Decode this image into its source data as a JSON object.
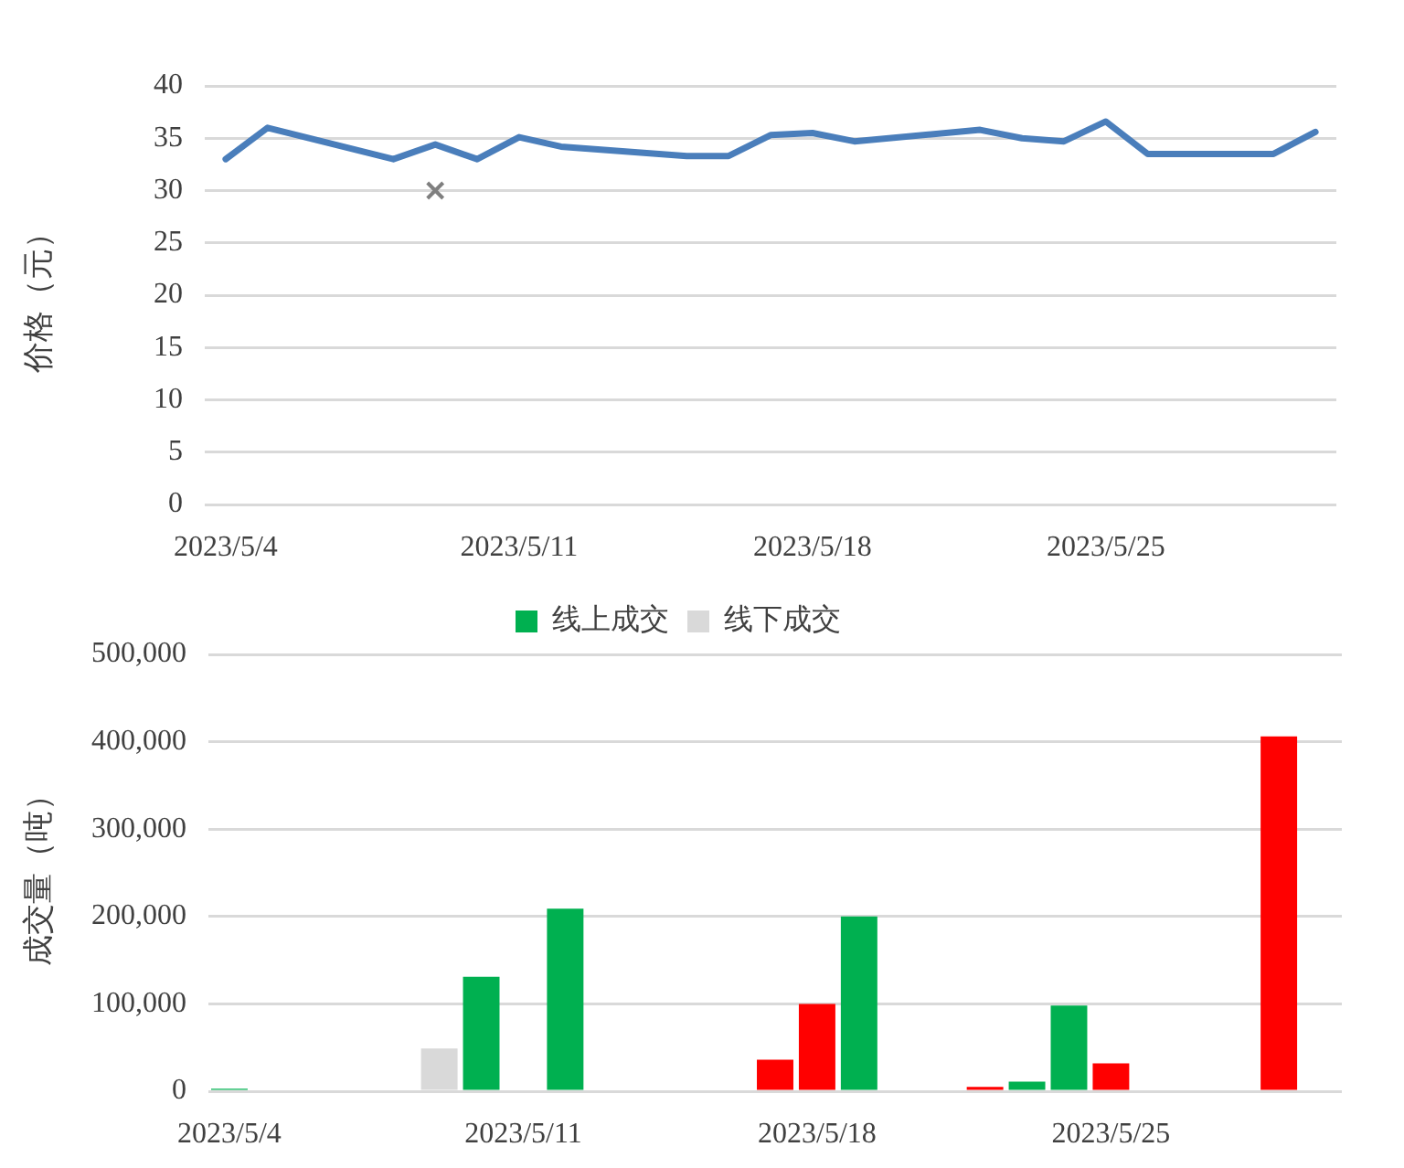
{
  "chart_data": [
    {
      "type": "line",
      "ylabel": "价格（元）",
      "xlim": [
        "2023-05-03T12:00",
        "2023-05-30T12:00"
      ],
      "xticks": [
        {
          "value": "2023-05-04",
          "label": "2023/5/4"
        },
        {
          "value": "2023-05-11",
          "label": "2023/5/11"
        },
        {
          "value": "2023-05-18",
          "label": "2023/5/18"
        },
        {
          "value": "2023-05-25",
          "label": "2023/5/25"
        }
      ],
      "ylim": [
        0,
        40
      ],
      "yticks": [
        0,
        5,
        10,
        15,
        20,
        25,
        30,
        35,
        40
      ],
      "grid": "y",
      "legend": false,
      "series": [
        {
          "type": "line",
          "color": "#4a7ebb",
          "marker": "none",
          "line_style": "solid",
          "x": [
            "2023-05-04",
            "2023-05-05",
            "2023-05-08",
            "2023-05-09",
            "2023-05-10",
            "2023-05-11",
            "2023-05-12",
            "2023-05-15",
            "2023-05-16",
            "2023-05-17",
            "2023-05-18",
            "2023-05-19",
            "2023-05-22",
            "2023-05-23",
            "2023-05-24",
            "2023-05-25",
            "2023-05-26",
            "2023-05-29",
            "2023-05-30"
          ],
          "values": [
            33.0,
            36.0,
            33.0,
            34.4,
            33.0,
            35.1,
            34.2,
            33.3,
            33.3,
            35.3,
            35.5,
            34.7,
            35.8,
            35.0,
            34.7,
            36.6,
            33.5,
            33.5,
            35.6
          ]
        },
        {
          "type": "scatter",
          "color": "#7f7f7f",
          "marker": "cross",
          "x": [
            "2023-05-09"
          ],
          "values": [
            30
          ]
        }
      ]
    },
    {
      "type": "bar",
      "ylabel": "成交量（吨）",
      "xlim": [
        "2023-05-03T12:00",
        "2023-05-30T12:00"
      ],
      "xticks": [
        {
          "value": "2023-05-04",
          "label": "2023/5/4"
        },
        {
          "value": "2023-05-11",
          "label": "2023/5/11"
        },
        {
          "value": "2023-05-18",
          "label": "2023/5/18"
        },
        {
          "value": "2023-05-25",
          "label": "2023/5/25"
        }
      ],
      "ylim": [
        0,
        500000
      ],
      "yticks": [
        {
          "value": 0,
          "label": "0"
        },
        {
          "value": 100000,
          "label": "100,000"
        },
        {
          "value": 200000,
          "label": "200,000"
        },
        {
          "value": 300000,
          "label": "300,000"
        },
        {
          "value": 400000,
          "label": "400,000"
        },
        {
          "value": 500000,
          "label": "500,000"
        }
      ],
      "grid": "y",
      "legend": "top",
      "series": [
        {
          "name": "线上成交",
          "color": "#00b050",
          "x": [
            "2023-05-04",
            "2023-05-10",
            "2023-05-12",
            "2023-05-17",
            "2023-05-18",
            "2023-05-19",
            "2023-05-22",
            "2023-05-23",
            "2023-05-24",
            "2023-05-25",
            "2023-05-29"
          ],
          "values": [
            3000,
            131000,
            209000,
            36000,
            100000,
            200000,
            5000,
            11000,
            98000,
            32000,
            406000
          ],
          "colors": [
            "#00b050",
            "#00b050",
            "#00b050",
            "#ff0000",
            "#ff0000",
            "#00b050",
            "#ff0000",
            "#00b050",
            "#00b050",
            "#ff0000",
            "#ff0000"
          ]
        },
        {
          "name": "线下成交",
          "color": "#d9d9d9",
          "x": [
            "2023-05-09"
          ],
          "values": [
            49000
          ]
        }
      ]
    }
  ]
}
